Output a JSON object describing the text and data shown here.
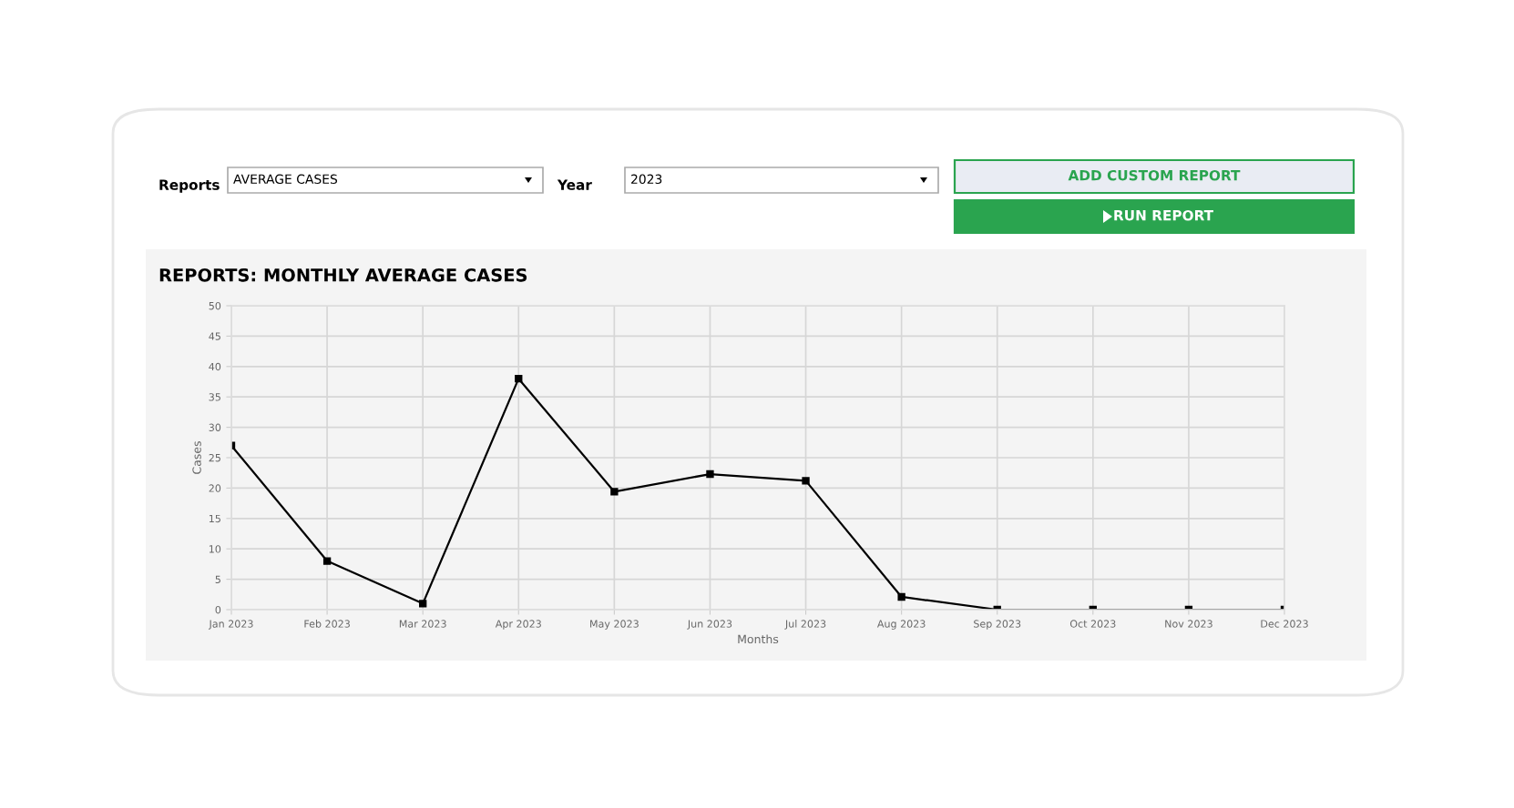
{
  "chart_data": {
    "type": "line",
    "title": "REPORTS: MONTHLY AVERAGE CASES",
    "xlabel": "Months",
    "ylabel": "Cases",
    "categories": [
      "Jan 2023",
      "Feb 2023",
      "Mar 2023",
      "Apr 2023",
      "May 2023",
      "Jun 2023",
      "Jul 2023",
      "Aug 2023",
      "Sep 2023",
      "Oct 2023",
      "Nov 2023",
      "Dec 2023"
    ],
    "series": [
      {
        "color": "#000000",
        "values": [
          27,
          8,
          1,
          38,
          19.4,
          22.3,
          21.2,
          2.1,
          0,
          0,
          0,
          0
        ]
      }
    ],
    "ylim": [
      0,
      50
    ],
    "yticks": [
      0,
      5,
      10,
      15,
      20,
      25,
      30,
      35,
      40,
      45,
      50
    ],
    "grid": true,
    "marker": "square",
    "line_style": "solid",
    "annotations": [
      "Reports",
      "AVERAGE CASES",
      "Year",
      "2023",
      "ADD CUSTOM REPORT",
      "RUN REPORT"
    ]
  }
}
